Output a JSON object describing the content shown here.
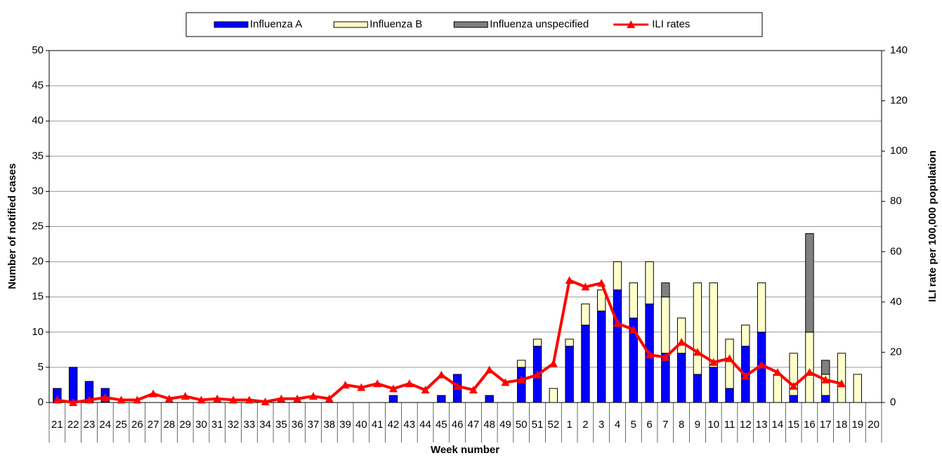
{
  "chart_data": {
    "type": "bar",
    "x_label": "Week number",
    "y_label": "Number of notified cases",
    "y2_label": "ILI rate per 100,000 population",
    "categories": [
      "21",
      "22",
      "23",
      "24",
      "25",
      "26",
      "27",
      "28",
      "29",
      "30",
      "31",
      "32",
      "33",
      "34",
      "35",
      "36",
      "37",
      "38",
      "39",
      "40",
      "41",
      "42",
      "43",
      "44",
      "45",
      "46",
      "47",
      "48",
      "49",
      "50",
      "51",
      "52",
      "1",
      "2",
      "3",
      "4",
      "5",
      "6",
      "7",
      "8",
      "9",
      "10",
      "11",
      "12",
      "13",
      "14",
      "15",
      "16",
      "17",
      "18",
      "19",
      "20"
    ],
    "series": [
      {
        "name": "Influenza A",
        "type": "bar",
        "color": "#0000ff",
        "values": [
          2,
          5,
          3,
          2,
          0,
          0,
          0,
          0,
          0,
          0,
          0,
          0,
          0,
          0,
          0,
          0,
          0,
          0,
          0,
          0,
          0,
          1,
          0,
          0,
          1,
          4,
          0,
          1,
          0,
          5,
          8,
          0,
          8,
          11,
          13,
          16,
          12,
          14,
          7,
          7,
          4,
          5,
          2,
          8,
          10,
          0,
          1,
          0,
          1,
          0,
          0,
          0
        ]
      },
      {
        "name": "Influenza B",
        "type": "bar",
        "color": "#ffffcc",
        "values": [
          0,
          0,
          0,
          0,
          0,
          0,
          0,
          0,
          0,
          0,
          0,
          0,
          0,
          0,
          0,
          0,
          0,
          0,
          0,
          0,
          0,
          0,
          0,
          0,
          0,
          0,
          0,
          0,
          0,
          1,
          1,
          2,
          1,
          3,
          3,
          4,
          5,
          6,
          8,
          5,
          13,
          12,
          7,
          3,
          7,
          4,
          6,
          10,
          3,
          7,
          4,
          0
        ]
      },
      {
        "name": "Influenza unspecified",
        "type": "bar",
        "color": "#808080",
        "values": [
          0,
          0,
          0,
          0,
          0,
          0,
          0,
          0,
          0,
          0,
          0,
          0,
          0,
          0,
          0,
          0,
          0,
          0,
          0,
          0,
          0,
          0,
          0,
          0,
          0,
          0,
          0,
          0,
          0,
          0,
          0,
          0,
          0,
          0,
          0,
          0,
          0,
          0,
          2,
          0,
          0,
          0,
          0,
          0,
          0,
          0,
          0,
          14,
          2,
          0,
          0,
          0
        ]
      },
      {
        "name": "ILI rates",
        "type": "line",
        "axis": "y2",
        "color": "#ff0000",
        "values": [
          1,
          0,
          1,
          2,
          1,
          1,
          3.5,
          1.5,
          2.5,
          1,
          1.5,
          1,
          1,
          0.3,
          1.5,
          1.5,
          2.5,
          1.5,
          7,
          6,
          7.5,
          5.5,
          7.5,
          5,
          11,
          6.5,
          5,
          13,
          8,
          9,
          11,
          15.5,
          48.6,
          46,
          47.5,
          31.5,
          29,
          19,
          18,
          24,
          20,
          16,
          17.5,
          10.5,
          15,
          12,
          6.5,
          12,
          9,
          7.5,
          null,
          null
        ]
      }
    ],
    "ylim": [
      0,
      50
    ],
    "yticks": [
      0,
      5,
      10,
      15,
      20,
      25,
      30,
      35,
      40,
      45,
      50
    ],
    "y2lim": [
      0,
      140
    ],
    "y2ticks": [
      0,
      20,
      40,
      60,
      80,
      100,
      120,
      140
    ],
    "grid": true,
    "legend": "top"
  }
}
